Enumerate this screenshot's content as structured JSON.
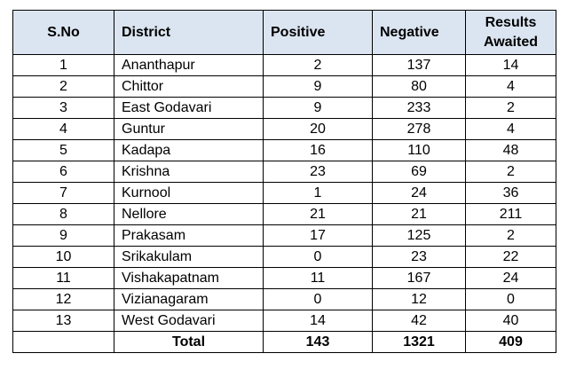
{
  "table": {
    "headers": {
      "sno": "S.No",
      "district": "District",
      "positive": "Positive",
      "negative": "Negative",
      "awaited": "Results Awaited"
    },
    "rows": [
      {
        "sno": "1",
        "district": "Ananthapur",
        "positive": "2",
        "negative": "137",
        "awaited": "14"
      },
      {
        "sno": "2",
        "district": "Chittor",
        "positive": "9",
        "negative": "80",
        "awaited": "4"
      },
      {
        "sno": "3",
        "district": "East Godavari",
        "positive": "9",
        "negative": "233",
        "awaited": "2"
      },
      {
        "sno": "4",
        "district": "Guntur",
        "positive": "20",
        "negative": "278",
        "awaited": "4"
      },
      {
        "sno": "5",
        "district": "Kadapa",
        "positive": "16",
        "negative": "110",
        "awaited": "48"
      },
      {
        "sno": "6",
        "district": "Krishna",
        "positive": "23",
        "negative": "69",
        "awaited": "2"
      },
      {
        "sno": "7",
        "district": "Kurnool",
        "positive": "1",
        "negative": "24",
        "awaited": "36"
      },
      {
        "sno": "8",
        "district": "Nellore",
        "positive": "21",
        "negative": "21",
        "awaited": "211"
      },
      {
        "sno": "9",
        "district": "Prakasam",
        "positive": "17",
        "negative": "125",
        "awaited": "2"
      },
      {
        "sno": "10",
        "district": "Srikakulam",
        "positive": "0",
        "negative": "23",
        "awaited": "22"
      },
      {
        "sno": "11",
        "district": "Vishakapatnam",
        "positive": "11",
        "negative": "167",
        "awaited": "24"
      },
      {
        "sno": "12",
        "district": "Vizianagaram",
        "positive": "0",
        "negative": "12",
        "awaited": "0"
      },
      {
        "sno": "13",
        "district": "West Godavari",
        "positive": "14",
        "negative": "42",
        "awaited": "40"
      }
    ],
    "total": {
      "label": "Total",
      "positive": "143",
      "negative": "1321",
      "awaited": "409"
    }
  },
  "colors": {
    "header_background": "#dbe5f1",
    "border": "#000000"
  }
}
